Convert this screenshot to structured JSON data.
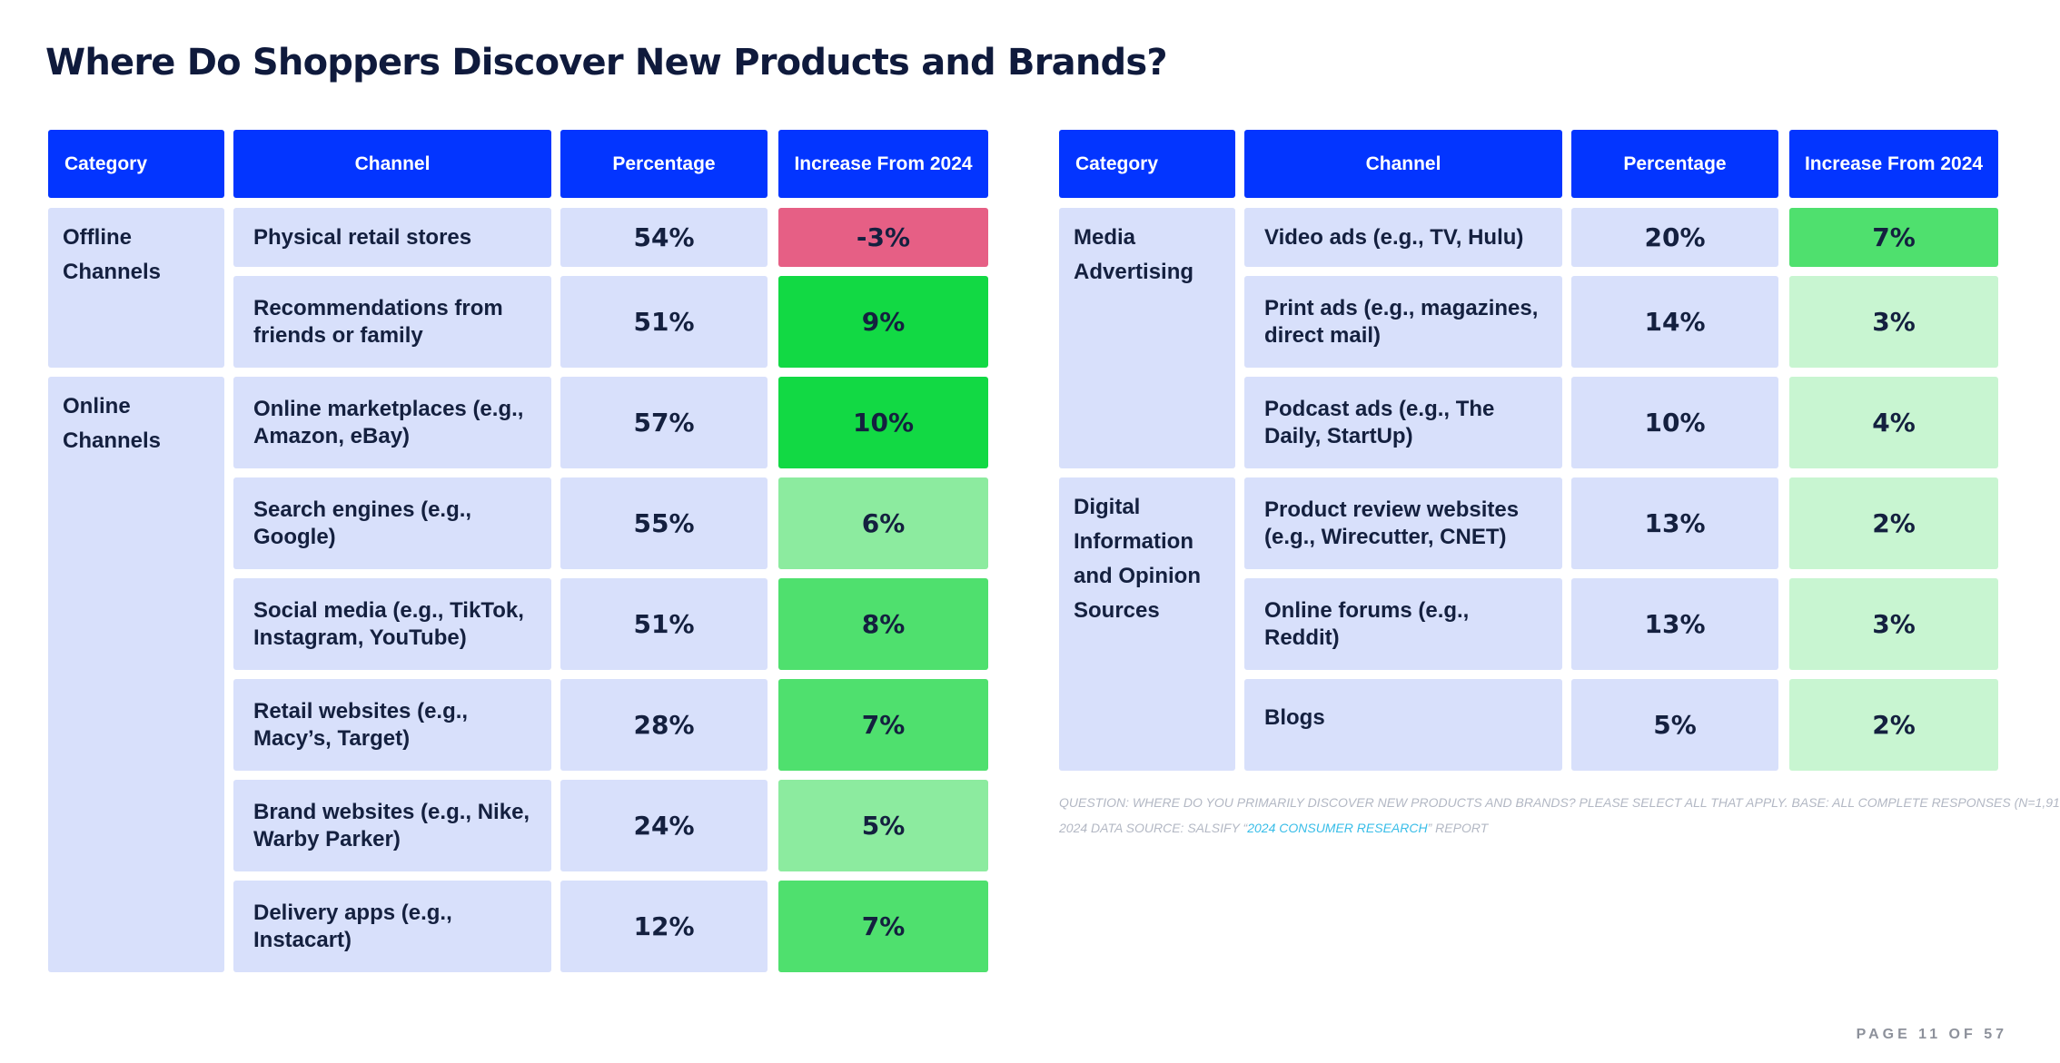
{
  "title": "Where Do Shoppers Discover New Products and Brands?",
  "headers": {
    "category": "Category",
    "channel": "Channel",
    "percentage": "Percentage",
    "increase": "Increase From 2024"
  },
  "left_table": {
    "groups": [
      {
        "category": "Offline Channels",
        "rows": [
          {
            "channel": "Physical retail stores",
            "percentage": "54%",
            "increase": "-3%",
            "color": "#e65f85"
          },
          {
            "channel": "Recommendations from friends or family",
            "percentage": "51%",
            "increase": "9%",
            "color": "#12d944"
          }
        ]
      },
      {
        "category": "Online Channels",
        "rows": [
          {
            "channel": "Online marketplaces (e.g., Amazon, eBay)",
            "percentage": "57%",
            "increase": "10%",
            "color": "#12d944"
          },
          {
            "channel": "Search engines (e.g., Google)",
            "percentage": "55%",
            "increase": "6%",
            "color": "#8ceb9f"
          },
          {
            "channel": "Social media (e.g., TikTok, Instagram, YouTube)",
            "percentage": "51%",
            "increase": "8%",
            "color": "#4fe06e"
          },
          {
            "channel": "Retail websites (e.g., Macy’s, Target)",
            "percentage": "28%",
            "increase": "7%",
            "color": "#4fe06e"
          },
          {
            "channel": "Brand websites (e.g., Nike, Warby Parker)",
            "percentage": "24%",
            "increase": "5%",
            "color": "#8ceb9f"
          },
          {
            "channel": "Delivery apps (e.g., Instacart)",
            "percentage": "12%",
            "increase": "7%",
            "color": "#4fe06e"
          }
        ]
      }
    ]
  },
  "right_table": {
    "groups": [
      {
        "category": "Media Advertising",
        "rows": [
          {
            "channel": "Video ads (e.g., TV, Hulu)",
            "percentage": "20%",
            "increase": "7%",
            "color": "#4fe06e"
          },
          {
            "channel": "Print ads (e.g., magazines, direct mail)",
            "percentage": "14%",
            "increase": "3%",
            "color": "#c8f5d1"
          },
          {
            "channel": "Podcast ads (e.g., The Daily, StartUp)",
            "percentage": "10%",
            "increase": "4%",
            "color": "#c8f5d1"
          }
        ]
      },
      {
        "category": "Digital Information and Opinion Sources",
        "rows": [
          {
            "channel": "Product review websites (e.g., Wirecutter, CNET)",
            "percentage": "13%",
            "increase": "2%",
            "color": "#c8f5d1"
          },
          {
            "channel": "Online forums (e.g., Reddit)",
            "percentage": "13%",
            "increase": "3%",
            "color": "#c8f5d1"
          },
          {
            "channel": "Blogs",
            "percentage": "5%",
            "increase": "2%",
            "color": "#c8f5d1"
          }
        ]
      }
    ]
  },
  "note": {
    "question": "QUESTION: WHERE DO YOU PRIMARILY DISCOVER NEW PRODUCTS AND BRANDS? PLEASE SELECT ALL THAT APPLY. BASE: ALL COMPLETE RESPONSES (N=1,91",
    "source_prefix": "2024 DATA SOURCE: SALSIFY “",
    "source_link": "2024 CONSUMER RESEARCH",
    "source_suffix": "” REPORT"
  },
  "footer": "PAGE 11 OF 57"
}
